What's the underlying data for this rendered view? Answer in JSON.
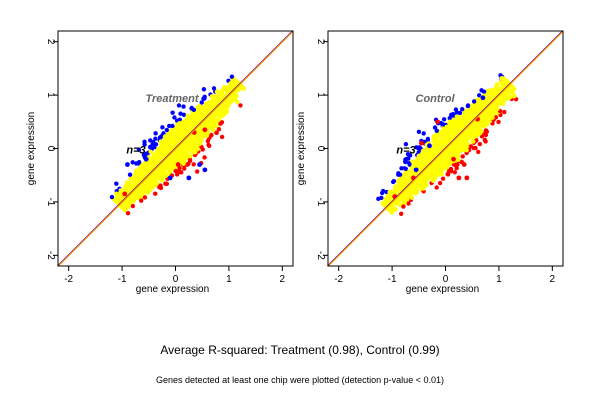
{
  "chart_data": [
    {
      "type": "scatter",
      "panel_title": "Treatment",
      "sample_label": "n=3",
      "xlabel": "gene expression",
      "ylabel": "gene expression",
      "xlim": [
        -2.2,
        2.2
      ],
      "ylim": [
        -2.2,
        2.2
      ],
      "xticks": [
        -2,
        -1,
        0,
        1,
        2
      ],
      "yticks": [
        -2,
        -1,
        0,
        1,
        2
      ],
      "grid": false,
      "reference_line": {
        "type": "identity",
        "slope": 1,
        "intercept": 0,
        "colors": [
          "#0000ff",
          "#ff0000",
          "#ffa500"
        ]
      },
      "point_cloud": {
        "x_range": [
          -1.05,
          1.2
        ],
        "y_range": [
          -1.05,
          1.25
        ],
        "colors": {
          "main": "#ffff00",
          "outlier_up": "#0000ff",
          "outlier_down": "#ff0000"
        }
      },
      "outliers": [
        {
          "x": -0.9,
          "y": -0.3,
          "color": "#0000ff"
        },
        {
          "x": -0.55,
          "y": -0.2,
          "color": "#0000ff"
        },
        {
          "x": 0.55,
          "y": -0.4,
          "color": "#0000ff"
        },
        {
          "x": 0.45,
          "y": -0.3,
          "color": "#0000ff"
        },
        {
          "x": -0.1,
          "y": -0.55,
          "color": "#0000ff"
        },
        {
          "x": 0.25,
          "y": -0.55,
          "color": "#0000ff"
        },
        {
          "x": -0.95,
          "y": -0.85,
          "color": "#ff0000"
        },
        {
          "x": 0.35,
          "y": 0.3,
          "color": "#ff0000"
        },
        {
          "x": 0.55,
          "y": 0.35,
          "color": "#ff0000"
        },
        {
          "x": 0.05,
          "y": -0.3,
          "color": "#ff0000"
        }
      ]
    },
    {
      "type": "scatter",
      "panel_title": "Control",
      "sample_label": "n=3",
      "xlabel": "gene expression",
      "ylabel": "gene expression",
      "xlim": [
        -2.2,
        2.2
      ],
      "ylim": [
        -2.2,
        2.2
      ],
      "xticks": [
        -2,
        -1,
        0,
        1,
        2
      ],
      "yticks": [
        -2,
        -1,
        0,
        1,
        2
      ],
      "grid": false,
      "reference_line": {
        "type": "identity",
        "slope": 1,
        "intercept": 0,
        "colors": [
          "#0000ff",
          "#ff0000",
          "#ffa500"
        ]
      },
      "point_cloud": {
        "x_range": [
          -1.1,
          1.2
        ],
        "y_range": [
          -1.1,
          1.2
        ],
        "colors": {
          "main": "#ffff00",
          "outlier_up": "#0000ff",
          "outlier_down": "#ff0000"
        }
      },
      "outliers": [
        {
          "x": -0.15,
          "y": 0.5,
          "color": "#ff0000"
        },
        {
          "x": -0.45,
          "y": 0.1,
          "color": "#ff0000"
        },
        {
          "x": 0.35,
          "y": -0.3,
          "color": "#ff0000"
        },
        {
          "x": 0.25,
          "y": -0.55,
          "color": "#ff0000"
        },
        {
          "x": 0.4,
          "y": -0.55,
          "color": "#ff0000"
        },
        {
          "x": 0.15,
          "y": -0.2,
          "color": "#ff0000"
        },
        {
          "x": 0.6,
          "y": 0.55,
          "color": "#ff0000"
        },
        {
          "x": -0.6,
          "y": -0.55,
          "color": "#ff0000"
        },
        {
          "x": -0.95,
          "y": -0.9,
          "color": "#ff0000"
        },
        {
          "x": -0.75,
          "y": -0.25,
          "color": "#0000ff"
        },
        {
          "x": -0.55,
          "y": -0.4,
          "color": "#0000ff"
        },
        {
          "x": -0.3,
          "y": 0.05,
          "color": "#0000ff"
        },
        {
          "x": 0.7,
          "y": 0.95,
          "color": "#0000ff"
        }
      ]
    }
  ],
  "summary": {
    "r_squared": "Average R-squared: Treatment (0.98), Control (0.99)",
    "footnote": "Genes detected at least one chip were plotted (detection p-value < 0.01)"
  }
}
